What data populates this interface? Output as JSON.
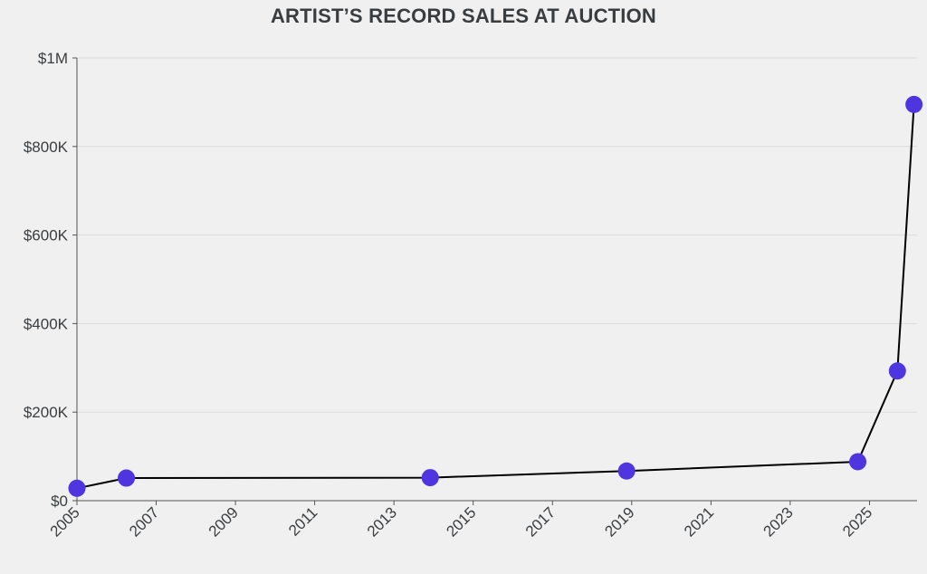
{
  "chart_data": {
    "type": "line",
    "title": "ARTIST’S RECORD SALES AT AUCTION",
    "xlabel": "",
    "ylabel": "",
    "x_axis": "date",
    "xlim": [
      "2005-01-01",
      "2026-03-15"
    ],
    "ylim": [
      0,
      1000000
    ],
    "x_ticks": [
      "2005",
      "2007",
      "2009",
      "2011",
      "2013",
      "2015",
      "2017",
      "2019",
      "2021",
      "2023",
      "2025"
    ],
    "y_ticks": [
      {
        "value": 0,
        "label": "$0"
      },
      {
        "value": 200000,
        "label": "$200K"
      },
      {
        "value": 400000,
        "label": "$400K"
      },
      {
        "value": 600000,
        "label": "$600K"
      },
      {
        "value": 800000,
        "label": "$800K"
      },
      {
        "value": 1000000,
        "label": "$1M"
      }
    ],
    "grid": true,
    "series": [
      {
        "color": "#4f35e0",
        "line_color": "#000000",
        "points": [
          {
            "x": "2005-01-01",
            "y": 28000
          },
          {
            "x": "2006-04-01",
            "y": 51000
          },
          {
            "x": "2013-12-01",
            "y": 52000
          },
          {
            "x": "2018-11-15",
            "y": 67000
          },
          {
            "x": "2024-09-15",
            "y": 88000
          },
          {
            "x": "2025-09-15",
            "y": 293000
          },
          {
            "x": "2026-02-15",
            "y": 895000
          }
        ]
      }
    ]
  }
}
